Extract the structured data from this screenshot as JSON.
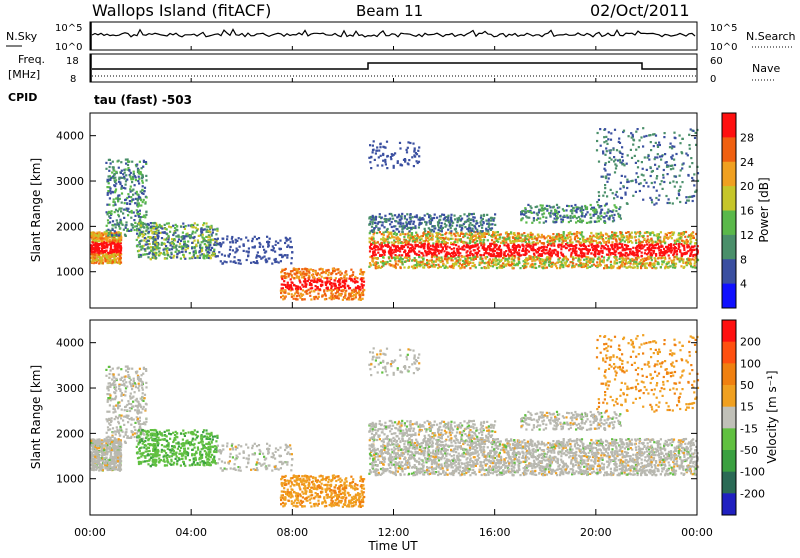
{
  "header": {
    "title": "Wallops Island (fitACF)",
    "beam": "Beam 11",
    "date": "02/Oct/2011"
  },
  "noise_panel": {
    "left_label": "N.Sky",
    "right_label": "N.Search",
    "ticks_left": [
      "10^5",
      "10^0"
    ],
    "ticks_right": [
      "10^5",
      "10^0"
    ]
  },
  "freq_panel": {
    "left_label": "Freq.",
    "left_unit": "[MHz]",
    "right_label": "Nave",
    "ticks_left": [
      "18",
      "8"
    ],
    "ticks_right": [
      "60",
      "0"
    ],
    "cpid_label": "CPID",
    "cpid_value": "tau (fast) -503"
  },
  "x_axis": {
    "label": "Time UT",
    "ticks": [
      "00:00",
      "04:00",
      "08:00",
      "12:00",
      "16:00",
      "20:00",
      "00:00"
    ]
  },
  "chart_data": [
    {
      "type": "heatmap",
      "quantity": "Power",
      "ylabel": "Slant Range [km]",
      "ylim": [
        200,
        4500
      ],
      "yticks": [
        "1000",
        "2000",
        "3000",
        "4000"
      ],
      "colorbar_label": "Power [dB]",
      "colorbar_ticks": [
        "4",
        "8",
        "12",
        "16",
        "20",
        "24",
        "28"
      ],
      "colorbar_colors": [
        "#1010ff",
        "#3a4fa0",
        "#4a8f6a",
        "#5ab84a",
        "#c6c62a",
        "#f0a020",
        "#f06010",
        "#ff1010"
      ]
    },
    {
      "type": "heatmap",
      "quantity": "Velocity",
      "ylabel": "Slant Range [km]",
      "ylim": [
        200,
        4500
      ],
      "yticks": [
        "1000",
        "2000",
        "3000",
        "4000"
      ],
      "colorbar_label": "Velocity [m s⁻¹]",
      "colorbar_ticks": [
        "200",
        "100",
        "50",
        "15",
        "-15",
        "-50",
        "-100",
        "-200"
      ],
      "colorbar_colors": [
        "#2020c0",
        "#2a6a55",
        "#3aa040",
        "#60c040",
        "#c0c0b8",
        "#f0a020",
        "#f08010",
        "#ff5010",
        "#ff1010"
      ]
    }
  ],
  "colors": {
    "power_scale": [
      "#1010ff",
      "#3a4fa0",
      "#4a8f6a",
      "#5ab84a",
      "#c6c62a",
      "#f0a020",
      "#f06010",
      "#ff1010"
    ],
    "velocity_scale": [
      "#2020c0",
      "#2a6a55",
      "#3aa040",
      "#60c040",
      "#c0c0b8",
      "#f0a020",
      "#f08010",
      "#ff5010",
      "#ff1010"
    ],
    "ground_scatter": "#b8b8b0"
  }
}
